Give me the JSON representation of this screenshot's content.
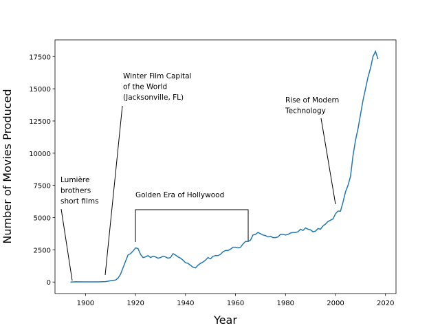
{
  "chart_data": {
    "type": "line",
    "xlabel": "Year",
    "ylabel": "Number of Movies Produced",
    "x": [
      1894,
      1896,
      1900,
      1905,
      1908,
      1910,
      1912,
      1913,
      1914,
      1915,
      1916,
      1917,
      1918,
      1919,
      1920,
      1921,
      1922,
      1923,
      1924,
      1925,
      1926,
      1927,
      1928,
      1929,
      1930,
      1931,
      1932,
      1933,
      1934,
      1935,
      1936,
      1937,
      1938,
      1939,
      1940,
      1941,
      1942,
      1943,
      1944,
      1945,
      1946,
      1947,
      1948,
      1949,
      1950,
      1951,
      1952,
      1953,
      1954,
      1955,
      1956,
      1957,
      1958,
      1959,
      1960,
      1961,
      1962,
      1963,
      1964,
      1965,
      1966,
      1967,
      1968,
      1969,
      1970,
      1971,
      1972,
      1973,
      1974,
      1975,
      1976,
      1977,
      1978,
      1979,
      1980,
      1981,
      1982,
      1983,
      1984,
      1985,
      1986,
      1987,
      1988,
      1989,
      1990,
      1991,
      1992,
      1993,
      1994,
      1995,
      1996,
      1997,
      1998,
      1999,
      2000,
      2001,
      2002,
      2003,
      2004,
      2005,
      2006,
      2007,
      2008,
      2009,
      2010,
      2011,
      2012,
      2013,
      2014,
      2015,
      2016,
      2017
    ],
    "series": [
      {
        "name": "movies",
        "color": "#1f77b4",
        "values": [
          0,
          20,
          10,
          15,
          30,
          100,
          150,
          300,
          600,
          1100,
          1600,
          2100,
          2200,
          2400,
          2650,
          2600,
          2150,
          1900,
          1950,
          2050,
          1900,
          2000,
          1950,
          1850,
          1900,
          2000,
          1950,
          1850,
          1900,
          2200,
          2100,
          1950,
          1850,
          1700,
          1500,
          1450,
          1300,
          1150,
          1100,
          1300,
          1450,
          1550,
          1700,
          1900,
          1800,
          2000,
          2050,
          2050,
          2150,
          2350,
          2450,
          2450,
          2550,
          2700,
          2700,
          2650,
          2700,
          2950,
          3150,
          3150,
          3250,
          3650,
          3700,
          3850,
          3750,
          3650,
          3600,
          3500,
          3550,
          3450,
          3450,
          3500,
          3700,
          3700,
          3650,
          3700,
          3800,
          3850,
          3850,
          3900,
          4100,
          4000,
          4200,
          4100,
          4050,
          3900,
          3950,
          4150,
          4100,
          4350,
          4500,
          4700,
          4800,
          4900,
          5300,
          5500,
          5500,
          6200,
          7000,
          7500,
          8200,
          9800,
          11000,
          11900,
          13000,
          14100,
          15000,
          15900,
          16600,
          17500,
          17900,
          17300
        ]
      }
    ],
    "xlim": [
      1887.8,
      2024.2
    ],
    "xticks": [
      1900,
      1920,
      1940,
      1960,
      1980,
      2000,
      2020
    ],
    "ylim": [
      -895,
      18795
    ],
    "yticks": [
      0,
      2500,
      5000,
      7500,
      10000,
      12500,
      15000,
      17500
    ],
    "annotations": [
      {
        "text": [
          "Lumière",
          "brothers",
          "short films"
        ]
      },
      {
        "text": [
          "Winter Film Capital",
          "of the World",
          "(Jacksonville, FL)"
        ]
      },
      {
        "text": [
          "Golden Era of Hollywood"
        ]
      },
      {
        "text": [
          "Rise of Modern",
          "Technology"
        ]
      }
    ]
  }
}
